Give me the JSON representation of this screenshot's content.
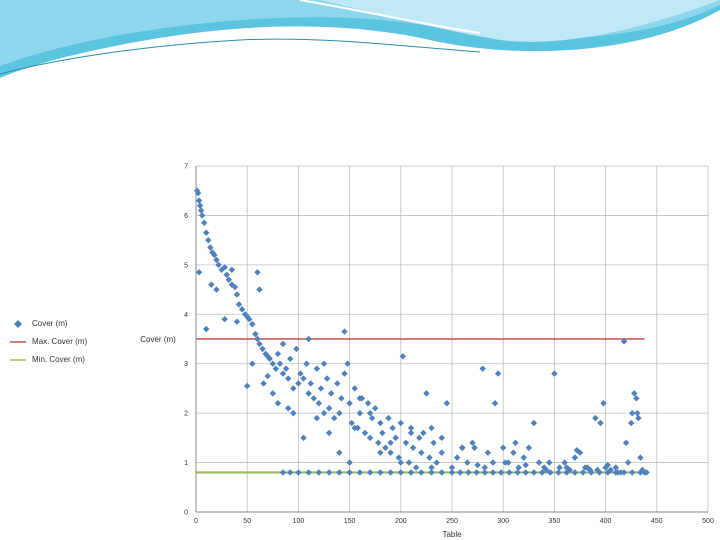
{
  "chart_data": {
    "type": "scatter",
    "title": "",
    "xlabel": "Table",
    "ylabel": "Cover (m)",
    "xlim": [
      0,
      500
    ],
    "ylim": [
      0,
      7
    ],
    "xticks": [
      0,
      50,
      100,
      150,
      200,
      250,
      300,
      350,
      400,
      450,
      500
    ],
    "xtick_labels": [
      "0",
      "50",
      "100",
      "150",
      "200",
      "250",
      "300",
      "350",
      "400",
      "450",
      "500"
    ],
    "yticks": [
      0,
      1,
      2,
      3,
      4,
      5,
      6,
      7
    ],
    "ytick_labels": [
      "0",
      "1",
      "2",
      "3",
      "4",
      "5",
      "6",
      "7"
    ],
    "grid": true,
    "legend_position": "left",
    "series": [
      {
        "name": "Cover (m)",
        "kind": "scatter",
        "color": "#4f81bd",
        "points": [
          [
            1,
            6.5
          ],
          [
            2,
            6.45
          ],
          [
            3,
            6.3
          ],
          [
            4,
            6.2
          ],
          [
            5,
            6.1
          ],
          [
            6,
            6.0
          ],
          [
            8,
            5.85
          ],
          [
            10,
            5.65
          ],
          [
            12,
            5.5
          ],
          [
            14,
            5.35
          ],
          [
            16,
            5.25
          ],
          [
            18,
            5.2
          ],
          [
            20,
            5.1
          ],
          [
            22,
            5.0
          ],
          [
            25,
            4.9
          ],
          [
            28,
            4.95
          ],
          [
            30,
            4.8
          ],
          [
            32,
            4.7
          ],
          [
            35,
            4.6
          ],
          [
            38,
            4.55
          ],
          [
            40,
            4.4
          ],
          [
            42,
            4.2
          ],
          [
            45,
            4.1
          ],
          [
            48,
            4.0
          ],
          [
            50,
            3.95
          ],
          [
            52,
            3.9
          ],
          [
            55,
            3.8
          ],
          [
            58,
            3.6
          ],
          [
            60,
            3.5
          ],
          [
            62,
            3.4
          ],
          [
            65,
            3.3
          ],
          [
            68,
            3.2
          ],
          [
            70,
            3.15
          ],
          [
            72,
            3.1
          ],
          [
            75,
            3.0
          ],
          [
            78,
            2.9
          ],
          [
            80,
            3.2
          ],
          [
            82,
            3.0
          ],
          [
            85,
            2.8
          ],
          [
            88,
            2.9
          ],
          [
            90,
            2.7
          ],
          [
            92,
            3.1
          ],
          [
            95,
            2.5
          ],
          [
            98,
            3.3
          ],
          [
            100,
            2.6
          ],
          [
            102,
            2.8
          ],
          [
            105,
            2.7
          ],
          [
            108,
            3.0
          ],
          [
            110,
            2.4
          ],
          [
            112,
            2.6
          ],
          [
            115,
            2.3
          ],
          [
            118,
            2.9
          ],
          [
            120,
            2.2
          ],
          [
            122,
            2.5
          ],
          [
            125,
            2.0
          ],
          [
            128,
            2.7
          ],
          [
            130,
            2.1
          ],
          [
            132,
            2.4
          ],
          [
            135,
            1.9
          ],
          [
            138,
            2.6
          ],
          [
            140,
            2.0
          ],
          [
            142,
            2.3
          ],
          [
            145,
            2.8
          ],
          [
            148,
            3.0
          ],
          [
            150,
            2.2
          ],
          [
            152,
            1.8
          ],
          [
            155,
            2.5
          ],
          [
            158,
            1.7
          ],
          [
            160,
            2.0
          ],
          [
            162,
            2.3
          ],
          [
            165,
            1.6
          ],
          [
            168,
            2.2
          ],
          [
            170,
            1.5
          ],
          [
            172,
            1.9
          ],
          [
            175,
            2.1
          ],
          [
            178,
            1.4
          ],
          [
            180,
            1.8
          ],
          [
            182,
            1.6
          ],
          [
            185,
            1.3
          ],
          [
            188,
            1.9
          ],
          [
            190,
            1.2
          ],
          [
            192,
            1.7
          ],
          [
            195,
            1.5
          ],
          [
            198,
            1.1
          ],
          [
            200,
            1.8
          ],
          [
            202,
            3.15
          ],
          [
            205,
            1.4
          ],
          [
            208,
            1.0
          ],
          [
            210,
            1.6
          ],
          [
            212,
            1.3
          ],
          [
            215,
            0.9
          ],
          [
            218,
            1.5
          ],
          [
            220,
            1.2
          ],
          [
            222,
            1.6
          ],
          [
            225,
            2.4
          ],
          [
            228,
            1.1
          ],
          [
            230,
            0.9
          ],
          [
            232,
            1.4
          ],
          [
            235,
            1.0
          ],
          [
            240,
            1.2
          ],
          [
            245,
            2.2
          ],
          [
            250,
            0.9
          ],
          [
            255,
            1.1
          ],
          [
            260,
            1.3
          ],
          [
            265,
            1.0
          ],
          [
            270,
            1.4
          ],
          [
            275,
            0.95
          ],
          [
            280,
            2.9
          ],
          [
            285,
            1.2
          ],
          [
            290,
            1.0
          ],
          [
            295,
            2.8
          ],
          [
            300,
            1.3
          ],
          [
            305,
            1.0
          ],
          [
            310,
            1.2
          ],
          [
            315,
            0.9
          ],
          [
            320,
            1.1
          ],
          [
            325,
            1.3
          ],
          [
            330,
            1.8
          ],
          [
            335,
            1.0
          ],
          [
            340,
            0.9
          ],
          [
            345,
            1.0
          ],
          [
            350,
            2.8
          ],
          [
            355,
            0.9
          ],
          [
            360,
            1.0
          ],
          [
            365,
            0.85
          ],
          [
            370,
            1.1
          ],
          [
            375,
            1.2
          ],
          [
            380,
            0.9
          ],
          [
            385,
            0.85
          ],
          [
            390,
            1.9
          ],
          [
            395,
            1.8
          ],
          [
            398,
            2.2
          ],
          [
            400,
            0.9
          ],
          [
            405,
            0.85
          ],
          [
            410,
            0.9
          ],
          [
            415,
            0.8
          ],
          [
            418,
            3.45
          ],
          [
            420,
            1.4
          ],
          [
            422,
            1.0
          ],
          [
            425,
            1.8
          ],
          [
            426,
            2.0
          ],
          [
            428,
            2.4
          ],
          [
            430,
            2.3
          ],
          [
            431,
            2.0
          ],
          [
            432,
            1.9
          ],
          [
            434,
            1.1
          ],
          [
            436,
            0.85
          ],
          [
            438,
            0.8
          ],
          [
            3,
            4.85
          ],
          [
            10,
            3.7
          ],
          [
            15,
            4.6
          ],
          [
            20,
            4.5
          ],
          [
            28,
            3.9
          ],
          [
            35,
            4.9
          ],
          [
            40,
            3.85
          ],
          [
            50,
            2.55
          ],
          [
            55,
            3.0
          ],
          [
            60,
            4.85
          ],
          [
            62,
            4.5
          ],
          [
            66,
            2.6
          ],
          [
            70,
            2.75
          ],
          [
            75,
            2.4
          ],
          [
            80,
            2.2
          ],
          [
            85,
            3.4
          ],
          [
            90,
            2.1
          ],
          [
            95,
            2.0
          ],
          [
            105,
            1.5
          ],
          [
            110,
            3.5
          ],
          [
            118,
            1.9
          ],
          [
            125,
            3.0
          ],
          [
            130,
            1.6
          ],
          [
            140,
            1.2
          ],
          [
            145,
            3.65
          ],
          [
            150,
            1.0
          ],
          [
            155,
            1.7
          ],
          [
            160,
            2.3
          ],
          [
            170,
            2.0
          ],
          [
            180,
            1.2
          ],
          [
            190,
            1.4
          ],
          [
            200,
            1.0
          ],
          [
            210,
            1.7
          ],
          [
            230,
            1.7
          ],
          [
            240,
            1.5
          ],
          [
            260,
            1.3
          ],
          [
            272,
            1.3
          ],
          [
            282,
            0.9
          ],
          [
            292,
            2.2
          ],
          [
            302,
            1.0
          ],
          [
            312,
            1.4
          ],
          [
            322,
            0.95
          ],
          [
            342,
            0.85
          ],
          [
            362,
            0.9
          ],
          [
            372,
            1.25
          ],
          [
            382,
            0.9
          ],
          [
            392,
            0.85
          ],
          [
            402,
            0.95
          ],
          [
            412,
            0.8
          ],
          [
            85,
            0.8
          ],
          [
            92,
            0.8
          ],
          [
            100,
            0.8
          ],
          [
            110,
            0.8
          ],
          [
            120,
            0.8
          ],
          [
            130,
            0.8
          ],
          [
            140,
            0.8
          ],
          [
            150,
            0.8
          ],
          [
            160,
            0.8
          ],
          [
            170,
            0.8
          ],
          [
            180,
            0.8
          ],
          [
            190,
            0.8
          ],
          [
            200,
            0.8
          ],
          [
            210,
            0.8
          ],
          [
            220,
            0.8
          ],
          [
            230,
            0.8
          ],
          [
            240,
            0.8
          ],
          [
            250,
            0.8
          ],
          [
            258,
            0.8
          ],
          [
            266,
            0.8
          ],
          [
            274,
            0.8
          ],
          [
            282,
            0.8
          ],
          [
            290,
            0.8
          ],
          [
            298,
            0.8
          ],
          [
            306,
            0.8
          ],
          [
            314,
            0.8
          ],
          [
            322,
            0.8
          ],
          [
            330,
            0.8
          ],
          [
            338,
            0.8
          ],
          [
            346,
            0.8
          ],
          [
            354,
            0.8
          ],
          [
            362,
            0.8
          ],
          [
            370,
            0.8
          ],
          [
            378,
            0.8
          ],
          [
            386,
            0.8
          ],
          [
            394,
            0.8
          ],
          [
            402,
            0.8
          ],
          [
            410,
            0.8
          ],
          [
            418,
            0.8
          ],
          [
            426,
            0.8
          ],
          [
            434,
            0.8
          ],
          [
            440,
            0.8
          ]
        ]
      },
      {
        "name": "Max. Cover (m)",
        "kind": "line",
        "color": "#c0504d",
        "points": [
          [
            0,
            3.5
          ],
          [
            438,
            3.5
          ]
        ]
      },
      {
        "name": "Min. Cover (m)",
        "kind": "line",
        "color": "#9bbb59",
        "points": [
          [
            0,
            0.8
          ],
          [
            438,
            0.8
          ]
        ]
      }
    ]
  }
}
